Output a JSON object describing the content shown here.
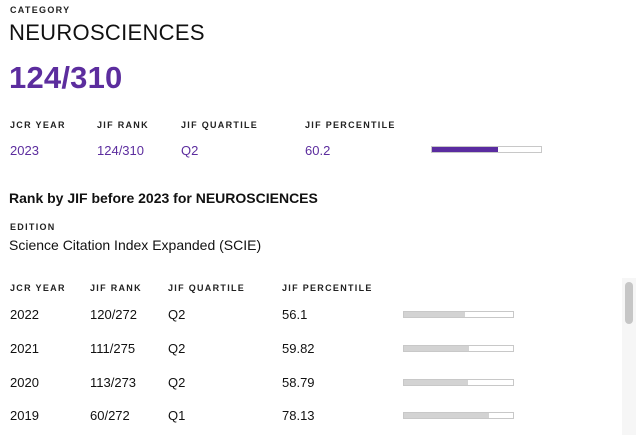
{
  "category": {
    "label": "CATEGORY",
    "name": "NEUROSCIENCES",
    "rank": "124/310"
  },
  "current": {
    "headers": [
      "JCR YEAR",
      "JIF RANK",
      "JIF QUARTILE",
      "JIF PERCENTILE"
    ],
    "row": {
      "year": "2023",
      "rank": "124/310",
      "quartile": "Q2",
      "percentile": "60.2",
      "percentile_value": 60.2
    }
  },
  "history": {
    "title": "Rank by JIF before 2023 for NEUROSCIENCES",
    "edition_label": "EDITION",
    "edition": "Science Citation Index Expanded (SCIE)",
    "headers": [
      "JCR YEAR",
      "JIF RANK",
      "JIF QUARTILE",
      "JIF PERCENTILE"
    ],
    "rows": [
      {
        "year": "2022",
        "rank": "120/272",
        "quartile": "Q2",
        "percentile": "56.1",
        "percentile_value": 56.1
      },
      {
        "year": "2021",
        "rank": "111/275",
        "quartile": "Q2",
        "percentile": "59.82",
        "percentile_value": 59.82
      },
      {
        "year": "2020",
        "rank": "113/273",
        "quartile": "Q2",
        "percentile": "58.79",
        "percentile_value": 58.79
      },
      {
        "year": "2019",
        "rank": "60/272",
        "quartile": "Q1",
        "percentile": "78.13",
        "percentile_value": 78.13
      }
    ]
  },
  "colors": {
    "accent": "#5c2d9e",
    "bar_fill_current": "#5a2ca0",
    "bar_fill_history": "#d3d3d3"
  }
}
